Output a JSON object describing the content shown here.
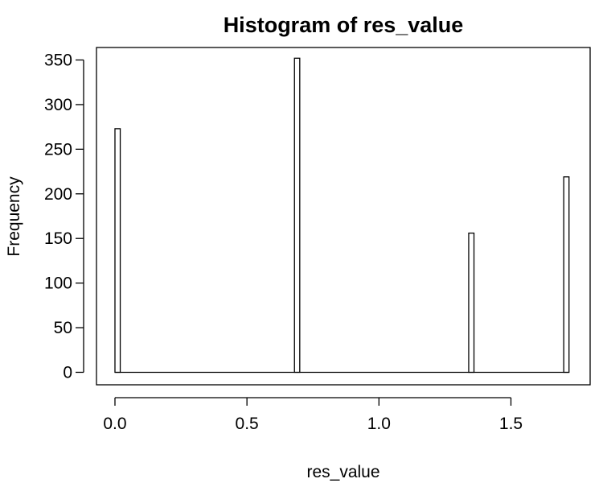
{
  "chart_data": {
    "type": "bar",
    "title": "Histogram of res_value",
    "xlabel": "res_value",
    "ylabel": "Frequency",
    "xlim": [
      -0.07,
      1.8
    ],
    "ylim": [
      -14,
      364
    ],
    "bin_width": 0.02,
    "x_ticks": [
      0.0,
      0.5,
      1.0,
      1.5
    ],
    "x_tick_labels": [
      "0.0",
      "0.5",
      "1.0",
      "1.5"
    ],
    "y_ticks": [
      0,
      50,
      100,
      150,
      200,
      250,
      300,
      350
    ],
    "y_tick_labels": [
      "0",
      "50",
      "100",
      "150",
      "200",
      "250",
      "300",
      "350"
    ],
    "bins": [
      {
        "start": 0.0,
        "end": 0.02,
        "value": 273
      },
      {
        "start": 0.68,
        "end": 0.7,
        "value": 352
      },
      {
        "start": 1.34,
        "end": 1.36,
        "value": 156
      },
      {
        "start": 1.7,
        "end": 1.72,
        "value": 219
      }
    ],
    "range": [
      0.0,
      1.72
    ],
    "fill": "#ffffff",
    "stroke": "#000000",
    "grid": false,
    "legend": "none"
  }
}
